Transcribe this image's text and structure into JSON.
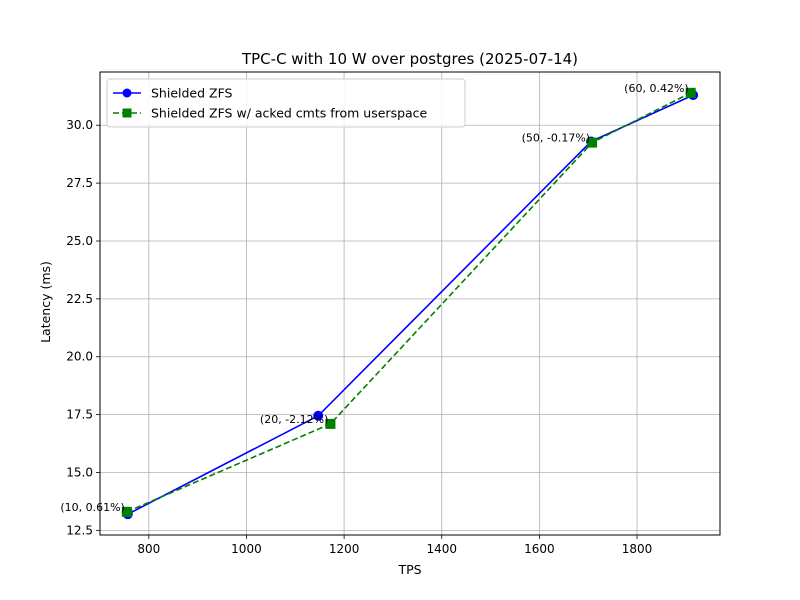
{
  "chart_data": {
    "type": "line",
    "title": "TPC-C with 10 W over postgres (2025-07-14)",
    "xlabel": "TPS",
    "ylabel": "Latency (ms)",
    "xlim": [
      700,
      1970
    ],
    "ylim": [
      12.3,
      32.3
    ],
    "xticks": [
      800,
      1000,
      1200,
      1400,
      1600,
      1800
    ],
    "yticks": [
      12.5,
      15.0,
      17.5,
      20.0,
      22.5,
      25.0,
      27.5,
      30.0
    ],
    "grid": true,
    "legend_position": "top-left",
    "series": [
      {
        "name": "Shielded ZFS",
        "color": "#0000ff",
        "line_style": "solid",
        "marker": "circle",
        "points": [
          {
            "x": 757,
            "y": 13.2
          },
          {
            "x": 1147,
            "y": 17.45
          },
          {
            "x": 1706,
            "y": 29.3
          },
          {
            "x": 1915,
            "y": 31.3
          }
        ]
      },
      {
        "name": "Shielded ZFS w/ acked cmts from userspace",
        "color": "#008000",
        "line_style": "dashed",
        "marker": "square",
        "points": [
          {
            "x": 755,
            "y": 13.3
          },
          {
            "x": 1172,
            "y": 17.1
          },
          {
            "x": 1708,
            "y": 29.25
          },
          {
            "x": 1910,
            "y": 31.4
          }
        ]
      }
    ],
    "annotations": [
      {
        "text": "(10, 0.61%)",
        "x": 755,
        "y": 13.3
      },
      {
        "text": "(20, -2.12%)",
        "x": 1172,
        "y": 17.1
      },
      {
        "text": "(50, -0.17%)",
        "x": 1708,
        "y": 29.25
      },
      {
        "text": "(60, 0.42%)",
        "x": 1910,
        "y": 31.4
      }
    ]
  }
}
